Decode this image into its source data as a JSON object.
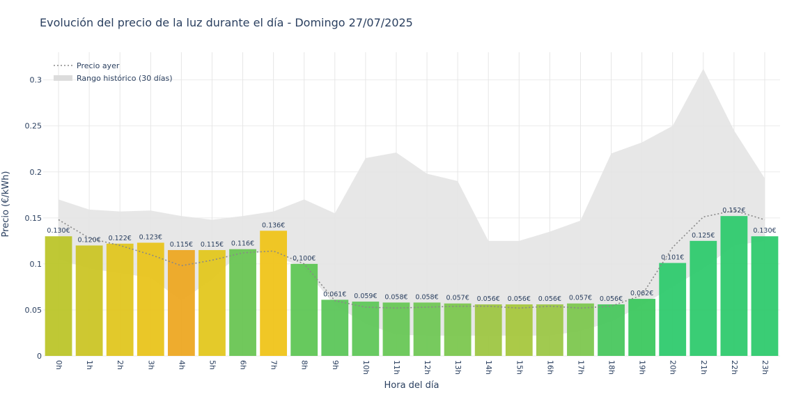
{
  "chart_data": {
    "type": "bar",
    "title": "Evolución del precio de la luz durante el día - Domingo 27/07/2025",
    "xlabel": "Hora del día",
    "ylabel": "Precio (€/kWh)",
    "ylim": [
      0,
      0.33
    ],
    "yticks": [
      "0",
      "0.05",
      "0.1",
      "0.15",
      "0.2",
      "0.25",
      "0.3"
    ],
    "ytick_values": [
      0,
      0.05,
      0.1,
      0.15,
      0.2,
      0.25,
      0.3
    ],
    "categories": [
      "0h",
      "1h",
      "2h",
      "3h",
      "4h",
      "5h",
      "6h",
      "7h",
      "8h",
      "9h",
      "10h",
      "11h",
      "12h",
      "13h",
      "14h",
      "15h",
      "16h",
      "17h",
      "18h",
      "19h",
      "20h",
      "21h",
      "22h",
      "23h"
    ],
    "values": [
      0.13,
      0.12,
      0.122,
      0.123,
      0.115,
      0.115,
      0.116,
      0.136,
      0.1,
      0.061,
      0.059,
      0.058,
      0.058,
      0.057,
      0.056,
      0.056,
      0.056,
      0.057,
      0.056,
      0.062,
      0.101,
      0.125,
      0.152,
      0.13
    ],
    "labels": [
      "0.130€",
      "0.120€",
      "0.122€",
      "0.123€",
      "0.115€",
      "0.115€",
      "0.116€",
      "0.136€",
      "0.100€",
      "0.061€",
      "0.059€",
      "0.058€",
      "0.058€",
      "0.057€",
      "0.056€",
      "0.056€",
      "0.056€",
      "0.057€",
      "0.056€",
      "0.062€",
      "0.101€",
      "0.125€",
      "0.152€",
      "0.130€"
    ],
    "bar_colors": [
      "#bcc52a",
      "#cbc526",
      "#e0c620",
      "#e9c41c",
      "#eda823",
      "#e3c71f",
      "#69c553",
      "#efc41a",
      "#5fc655",
      "#5cc65a",
      "#60c75a",
      "#68c756",
      "#70c755",
      "#7cc74f",
      "#9ec643",
      "#a6c73e",
      "#9cc747",
      "#7dc74f",
      "#49c75e",
      "#3cc85f",
      "#2fca6e",
      "#2fca6e",
      "#2fca6e",
      "#2fca6e"
    ],
    "series": [
      {
        "name": "Precio ayer",
        "style": "dotted",
        "color": "#888888",
        "values": [
          0.148,
          0.128,
          0.12,
          0.11,
          0.098,
          0.104,
          0.112,
          0.114,
          0.1,
          0.06,
          0.053,
          0.052,
          0.053,
          0.054,
          0.054,
          0.052,
          0.054,
          0.052,
          0.054,
          0.066,
          0.118,
          0.151,
          0.158,
          0.148
        ]
      },
      {
        "name": "Rango histórico (30 días)",
        "style": "band",
        "color": "#e4e4e4",
        "upper": [
          0.17,
          0.159,
          0.157,
          0.158,
          0.152,
          0.148,
          0.152,
          0.157,
          0.17,
          0.155,
          0.215,
          0.221,
          0.198,
          0.19,
          0.125,
          0.125,
          0.135,
          0.147,
          0.22,
          0.232,
          0.25,
          0.312,
          0.245,
          0.193
        ],
        "lower": [
          0.105,
          0.095,
          0.09,
          0.085,
          0.06,
          0.083,
          0.115,
          0.11,
          0.095,
          0.055,
          0.035,
          0.023,
          0.022,
          0.022,
          0.022,
          0.022,
          0.022,
          0.027,
          0.037,
          0.055,
          0.075,
          0.095,
          0.12,
          0.125
        ]
      }
    ],
    "legend_position": "top-left",
    "grid": true
  }
}
